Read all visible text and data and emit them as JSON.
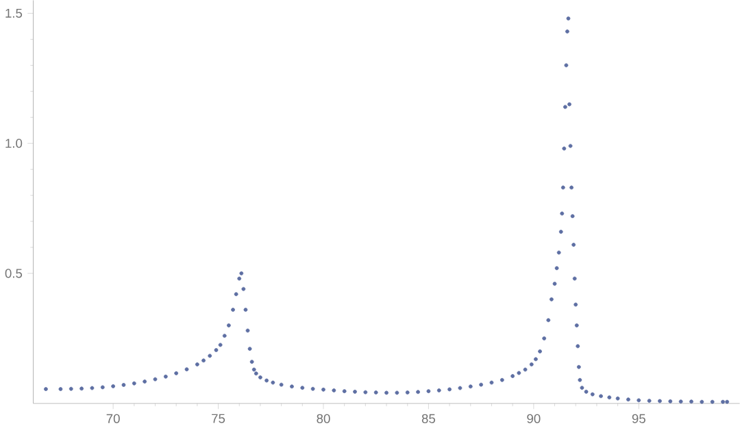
{
  "chart_data": {
    "type": "scatter",
    "grid": false,
    "xlim": [
      66.2,
      99.8
    ],
    "ylim": [
      0,
      1.55
    ],
    "xticks": [
      70,
      75,
      80,
      85,
      90,
      95
    ],
    "yticks": [
      0.5,
      {
        "value": 1.0,
        "label": "1.0"
      },
      1.5
    ],
    "series": [
      {
        "color": "#5e6fa3",
        "x": [
          66.8,
          67.5,
          68,
          68.5,
          69,
          69.5,
          70,
          70.5,
          71,
          71.5,
          72,
          72.5,
          73,
          73.5,
          74,
          74.3,
          74.6,
          74.9,
          75.1,
          75.3,
          75.5,
          75.7,
          75.85,
          76.0,
          76.1,
          76.2,
          76.3,
          76.4,
          76.5,
          76.6,
          76.7,
          76.8,
          77,
          77.3,
          77.6,
          78,
          78.5,
          79,
          79.5,
          80,
          80.5,
          81,
          81.5,
          82,
          82.5,
          83,
          83.5,
          84,
          84.5,
          85,
          85.5,
          86,
          86.5,
          87,
          87.5,
          88,
          88.5,
          89,
          89.3,
          89.6,
          89.9,
          90.1,
          90.3,
          90.5,
          90.7,
          90.85,
          91.0,
          91.1,
          91.2,
          91.3,
          91.35,
          91.4,
          91.45,
          91.5,
          91.55,
          91.6,
          91.65,
          91.7,
          91.75,
          91.8,
          91.85,
          91.9,
          91.95,
          92.0,
          92.05,
          92.1,
          92.15,
          92.2,
          92.3,
          92.5,
          92.8,
          93.2,
          93.6,
          94,
          94.5,
          95,
          95.5,
          96,
          96.5,
          97,
          97.5,
          98,
          98.5,
          99,
          99.2
        ],
        "values": [
          0.055,
          0.055,
          0.056,
          0.057,
          0.059,
          0.062,
          0.066,
          0.071,
          0.077,
          0.084,
          0.093,
          0.103,
          0.116,
          0.131,
          0.15,
          0.165,
          0.183,
          0.205,
          0.225,
          0.26,
          0.3,
          0.36,
          0.42,
          0.48,
          0.5,
          0.44,
          0.36,
          0.28,
          0.21,
          0.16,
          0.13,
          0.115,
          0.1,
          0.088,
          0.08,
          0.072,
          0.065,
          0.06,
          0.056,
          0.053,
          0.05,
          0.047,
          0.045,
          0.043,
          0.042,
          0.041,
          0.041,
          0.042,
          0.044,
          0.047,
          0.05,
          0.054,
          0.059,
          0.065,
          0.072,
          0.08,
          0.09,
          0.105,
          0.117,
          0.13,
          0.15,
          0.17,
          0.2,
          0.25,
          0.32,
          0.4,
          0.46,
          0.52,
          0.58,
          0.66,
          0.73,
          0.83,
          0.98,
          1.14,
          1.3,
          1.43,
          1.48,
          1.15,
          0.99,
          0.83,
          0.72,
          0.61,
          0.48,
          0.38,
          0.3,
          0.22,
          0.14,
          0.09,
          0.06,
          0.045,
          0.035,
          0.028,
          0.023,
          0.019,
          0.015,
          0.012,
          0.01,
          0.009,
          0.008,
          0.007,
          0.007,
          0.006,
          0.006,
          0.006,
          0.006
        ]
      }
    ]
  }
}
